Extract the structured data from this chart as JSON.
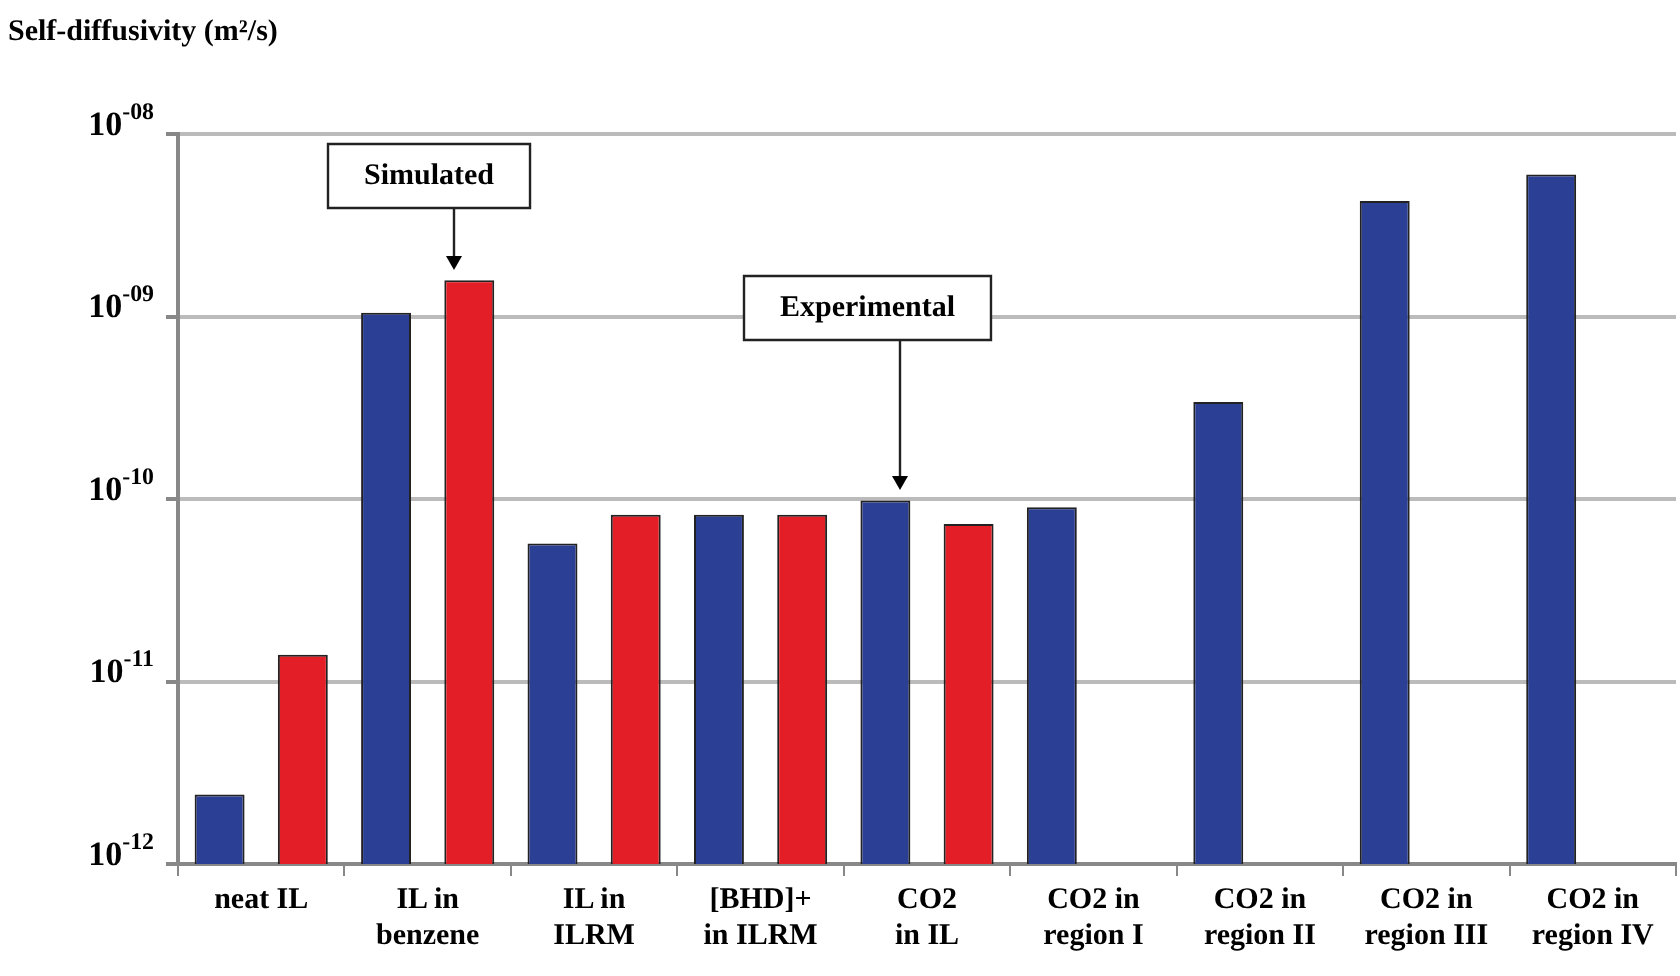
{
  "chart_data": {
    "type": "bar",
    "ylabel": "Self-diffusivity (m²/s)",
    "categories": [
      "neat IL",
      "IL in benzene",
      "IL in ILRM",
      "[BHD]+ in ILRM",
      "CO2 in IL",
      "CO2 in region I",
      "CO2 in region II",
      "CO2 in region III",
      "CO2 in region IV"
    ],
    "series": [
      {
        "color": "#2b3f94",
        "values": [
          2.4e-12,
          1.05e-09,
          5.7e-11,
          8.2e-11,
          9.8e-11,
          9e-11,
          3.4e-10,
          4.3e-09,
          6e-09
        ]
      },
      {
        "color": "#e41e26",
        "values": [
          1.4e-11,
          1.58e-09,
          8.2e-11,
          8.2e-11,
          7.3e-11,
          null,
          null,
          null,
          null
        ]
      }
    ],
    "log": true,
    "ylim": [
      1e-12,
      1e-08
    ],
    "yticks": [
      {
        "value": 1e-12,
        "label": "10$^{-12}$"
      },
      {
        "value": 1e-11,
        "label": "10$^{-11}$"
      },
      {
        "value": 1e-10,
        "label": "10$^{-10}$"
      },
      {
        "value": 1e-09,
        "label": "10$^{-09}$"
      },
      {
        "value": 1e-08,
        "label": "10$^{-08}$"
      }
    ],
    "grid": "y",
    "annotations": [
      "Simulated",
      "Experimental"
    ]
  }
}
